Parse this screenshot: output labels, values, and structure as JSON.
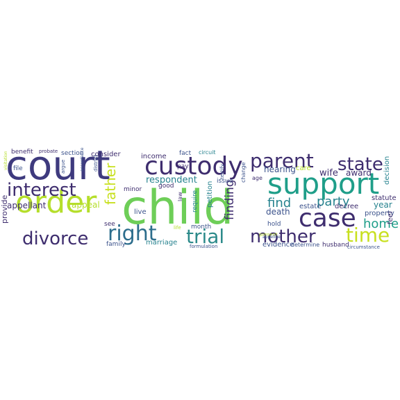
{
  "palette": {
    "deep_purple": "#440154",
    "indigo": "#472f7d",
    "dark_blue": "#3b528b",
    "blue": "#31688e",
    "teal_blue": "#26828e",
    "teal": "#1f9e89",
    "green": "#35b779",
    "light_green": "#6ece58",
    "lime": "#b5de2b",
    "yellow": "#fde725"
  },
  "words": [
    {
      "text": "court",
      "color": "#3e3a7e"
    },
    {
      "text": "child",
      "color": "#6ece58"
    },
    {
      "text": "custody",
      "color": "#3e2d6e"
    },
    {
      "text": "order",
      "color": "#b5de2b"
    },
    {
      "text": "support",
      "color": "#1f9e89"
    },
    {
      "text": "parent",
      "color": "#3e2d6e"
    },
    {
      "text": "state",
      "color": "#3e2d6e"
    },
    {
      "text": "case",
      "color": "#3e2d6e"
    },
    {
      "text": "interest",
      "color": "#3e2d6e"
    },
    {
      "text": "divorce",
      "color": "#3e2d6e"
    },
    {
      "text": "right",
      "color": "#2c6d8c"
    },
    {
      "text": "trial",
      "color": "#2c8a8a"
    },
    {
      "text": "mother",
      "color": "#3e2d6e"
    },
    {
      "text": "time",
      "color": "#c8e020"
    },
    {
      "text": "father",
      "color": "#c8e020"
    },
    {
      "text": "party",
      "color": "#26828e"
    },
    {
      "text": "find",
      "color": "#26828e"
    },
    {
      "text": "home",
      "color": "#1f9e89"
    },
    {
      "text": "finding",
      "color": "#3e2d6e"
    },
    {
      "text": "appellant",
      "color": "#3e2d6e"
    },
    {
      "text": "appeal",
      "color": "#b5de2b"
    },
    {
      "text": "respondent",
      "color": "#26828e"
    },
    {
      "text": "hearing",
      "color": "#3b528b"
    },
    {
      "text": "wife",
      "color": "#3e2d6e"
    },
    {
      "text": "award",
      "color": "#3e2d6e"
    },
    {
      "text": "death",
      "color": "#3b528b"
    },
    {
      "text": "year",
      "color": "#26828e"
    },
    {
      "text": "provide",
      "color": "#3e2d6e"
    },
    {
      "text": "income",
      "color": "#3e2d6e"
    },
    {
      "text": "consider",
      "color": "#3e2d6e"
    },
    {
      "text": "decision",
      "color": "#26828e"
    },
    {
      "text": "statute",
      "color": "#3e2d6e"
    },
    {
      "text": "decree",
      "color": "#3e2d6e"
    },
    {
      "text": "estate",
      "color": "#3b528b"
    },
    {
      "text": "evidence",
      "color": "#3b528b"
    },
    {
      "text": "marriage",
      "color": "#26828e"
    },
    {
      "text": "family",
      "color": "#3b528b"
    },
    {
      "text": "petition",
      "color": "#26828e"
    },
    {
      "text": "month",
      "color": "#3b528b"
    },
    {
      "text": "live",
      "color": "#3b528b"
    },
    {
      "text": "see",
      "color": "#3e2d6e"
    },
    {
      "text": "minor",
      "color": "#3e2d6e"
    },
    {
      "text": "good",
      "color": "#3e2d6e"
    },
    {
      "text": "issue",
      "color": "#3b528b"
    },
    {
      "text": "fact",
      "color": "#3b528b"
    },
    {
      "text": "circuit",
      "color": "#26828e"
    },
    {
      "text": "benefit",
      "color": "#3e2d6e"
    },
    {
      "text": "probate",
      "color": "#3e2d6e"
    },
    {
      "text": "section",
      "color": "#3b528b"
    },
    {
      "text": "file",
      "color": "#3b528b"
    },
    {
      "text": "argue",
      "color": "#3b528b"
    },
    {
      "text": "property",
      "color": "#3b528b"
    },
    {
      "text": "husband",
      "color": "#3e2d6e"
    },
    {
      "text": "hold",
      "color": "#3b528b"
    },
    {
      "text": "determine",
      "color": "#3b528b"
    },
    {
      "text": "circumstance",
      "color": "#3b528b"
    },
    {
      "text": "pay",
      "color": "#3e2d6e"
    },
    {
      "text": "require",
      "color": "#26828e"
    },
    {
      "text": "law",
      "color": "#3e2d6e"
    },
    {
      "text": "testify",
      "color": "#3b528b"
    },
    {
      "text": "change",
      "color": "#3b528b"
    },
    {
      "text": "age",
      "color": "#3e2d6e"
    },
    {
      "text": "care",
      "color": "#b5de2b"
    },
    {
      "text": "feel",
      "color": "#3e2d6e"
    },
    {
      "text": "life",
      "color": "#b5de2b"
    },
    {
      "text": "formulation",
      "color": "#3b528b"
    },
    {
      "text": "present",
      "color": "#b5de2b"
    },
    {
      "text": "appellee",
      "color": "#3b528b"
    },
    {
      "text": "district",
      "color": "#3b528b"
    },
    {
      "text": "accordance",
      "color": "#3b528b"
    },
    {
      "text": "visitation",
      "color": "#b5de2b"
    }
  ]
}
